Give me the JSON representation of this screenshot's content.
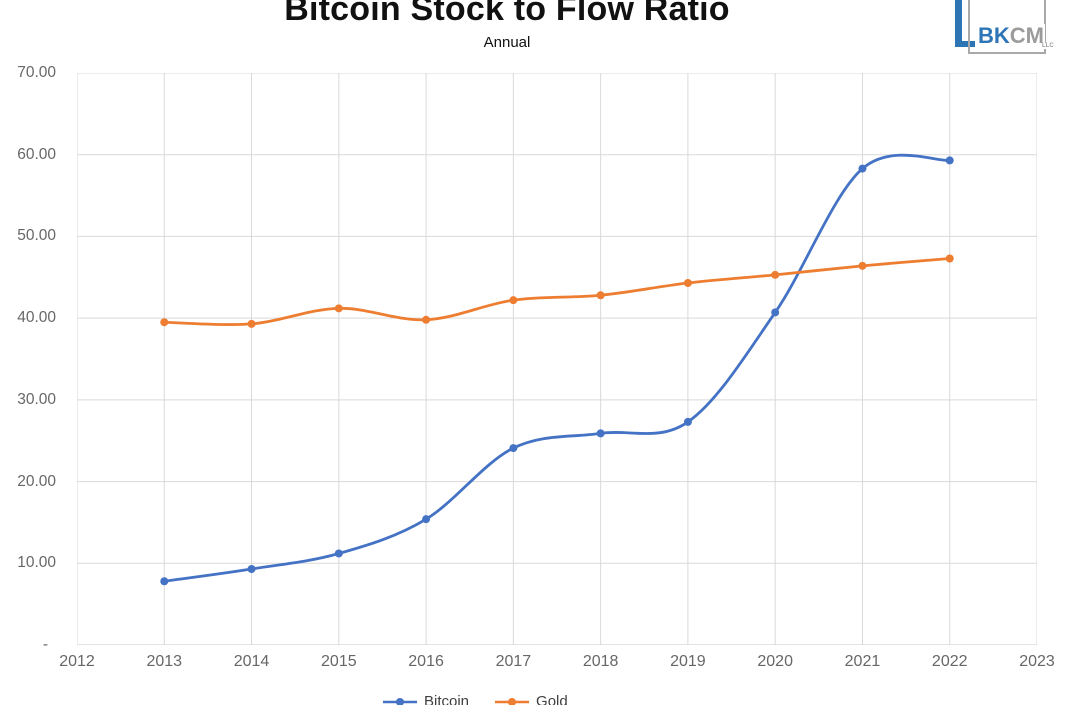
{
  "header": {
    "title": "Bitcoin Stock to Flow Ratio",
    "subtitle": "Annual"
  },
  "logo": {
    "text_primary": "BK",
    "text_secondary": "CM",
    "text_sub": "LLC",
    "blue": "#2E75B6",
    "gray": "#A9A9A9"
  },
  "chart_data": {
    "type": "line",
    "title": "Bitcoin Stock to Flow Ratio",
    "subtitle": "Annual",
    "smooth": true,
    "grid": true,
    "x": [
      2013,
      2014,
      2015,
      2016,
      2017,
      2018,
      2019,
      2020,
      2021,
      2022
    ],
    "series": [
      {
        "name": "Bitcoin",
        "color": "#4472C4",
        "values": [
          7.8,
          9.3,
          11.2,
          15.4,
          24.1,
          25.9,
          27.3,
          40.7,
          58.3,
          59.3
        ]
      },
      {
        "name": "Gold",
        "color": "#ED7D31",
        "values": [
          39.5,
          39.3,
          41.2,
          39.8,
          42.2,
          42.8,
          44.3,
          45.3,
          46.4,
          47.3
        ]
      }
    ],
    "xlabel": "",
    "ylabel": "",
    "x_axis": {
      "min": 2012,
      "max": 2023,
      "ticks": [
        "2012",
        "2013",
        "2014",
        "2015",
        "2016",
        "2017",
        "2018",
        "2019",
        "2020",
        "2021",
        "2022",
        "2023"
      ]
    },
    "y_axis": {
      "min": 0,
      "max": 70,
      "step": 10,
      "tick_labels": [
        "70.00",
        "60.00",
        "50.00",
        "40.00",
        "30.00",
        "20.00",
        "10.00",
        "-"
      ],
      "tick_values": [
        70,
        60,
        50,
        40,
        30,
        20,
        10,
        0
      ]
    },
    "legend": {
      "position": "bottom",
      "entries": [
        "Bitcoin",
        "Gold"
      ]
    },
    "colors": {
      "grid": "#D9D9D9",
      "axis_line": "#C9C9C9",
      "tick_text": "#676767",
      "legend_text": "#3F3F3F"
    }
  }
}
